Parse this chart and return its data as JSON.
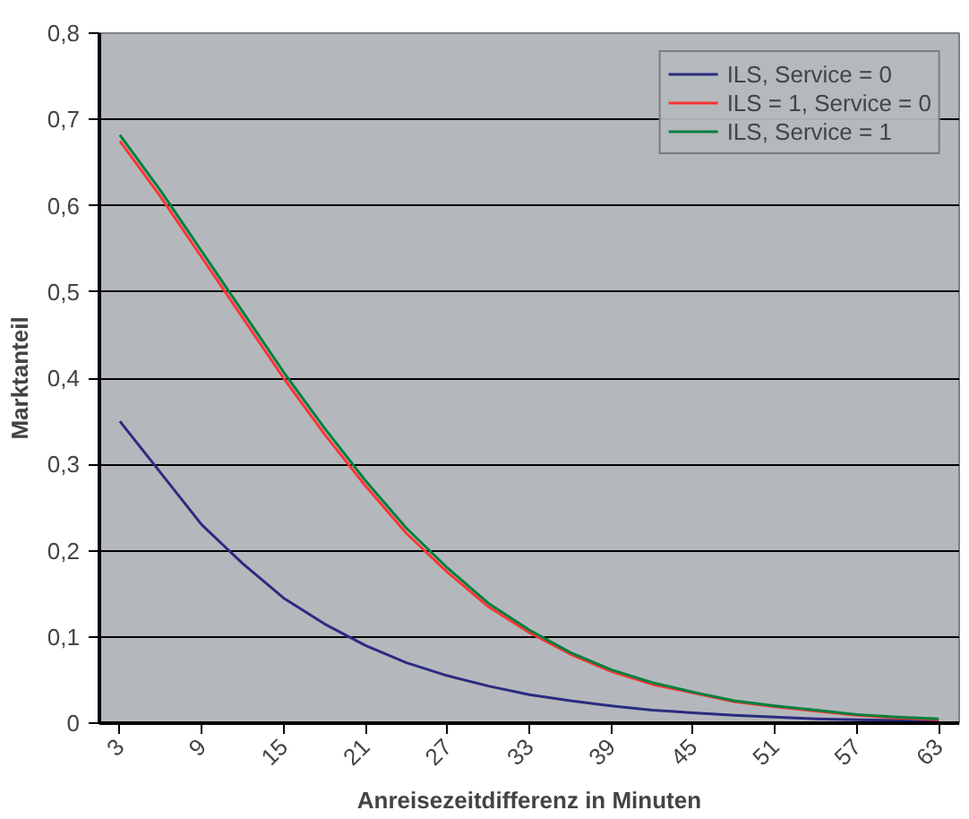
{
  "chart_data": {
    "type": "line",
    "xlabel": "Anreisezeitdifferenz in Minuten",
    "ylabel": "Marktanteil",
    "x": [
      3,
      6,
      9,
      12,
      15,
      18,
      21,
      24,
      27,
      30,
      33,
      36,
      39,
      42,
      45,
      48,
      51,
      54,
      57,
      60,
      63
    ],
    "series": [
      {
        "name": "ILS, Service = 0",
        "color": "#2b2b80",
        "values": [
          0.35,
          0.29,
          0.23,
          0.185,
          0.145,
          0.115,
          0.09,
          0.07,
          0.055,
          0.043,
          0.033,
          0.026,
          0.02,
          0.015,
          0.012,
          0.009,
          0.007,
          0.005,
          0.004,
          0.003,
          0.002
        ]
      },
      {
        "name": "ILS = 1, Service = 0",
        "color": "#ff3333",
        "values": [
          0.675,
          0.61,
          0.54,
          0.47,
          0.4,
          0.335,
          0.275,
          0.22,
          0.175,
          0.135,
          0.105,
          0.08,
          0.06,
          0.045,
          0.035,
          0.025,
          0.019,
          0.014,
          0.009,
          0.006,
          0.004
        ]
      },
      {
        "name": "ILS, Service = 1",
        "color": "#008040",
        "values": [
          0.682,
          0.617,
          0.547,
          0.477,
          0.407,
          0.342,
          0.281,
          0.226,
          0.18,
          0.139,
          0.108,
          0.082,
          0.062,
          0.047,
          0.036,
          0.026,
          0.02,
          0.015,
          0.01,
          0.007,
          0.005
        ]
      }
    ],
    "xlim": [
      1.5,
      64.5
    ],
    "xticks": [
      3,
      9,
      15,
      21,
      27,
      33,
      39,
      45,
      51,
      57,
      63
    ],
    "ylim": [
      0,
      0.8
    ],
    "yticks": [
      {
        "value": 0,
        "label": "0"
      },
      {
        "value": 0.1,
        "label": "0,1"
      },
      {
        "value": 0.2,
        "label": "0,2"
      },
      {
        "value": 0.3,
        "label": "0,3"
      },
      {
        "value": 0.4,
        "label": "0,4"
      },
      {
        "value": 0.5,
        "label": "0,5"
      },
      {
        "value": 0.6,
        "label": "0,6"
      },
      {
        "value": 0.7,
        "label": "0,7"
      },
      {
        "value": 0.8,
        "label": "0,8"
      }
    ],
    "grid": "y",
    "legend": "top right",
    "marker": "none",
    "line_style": "solid"
  }
}
